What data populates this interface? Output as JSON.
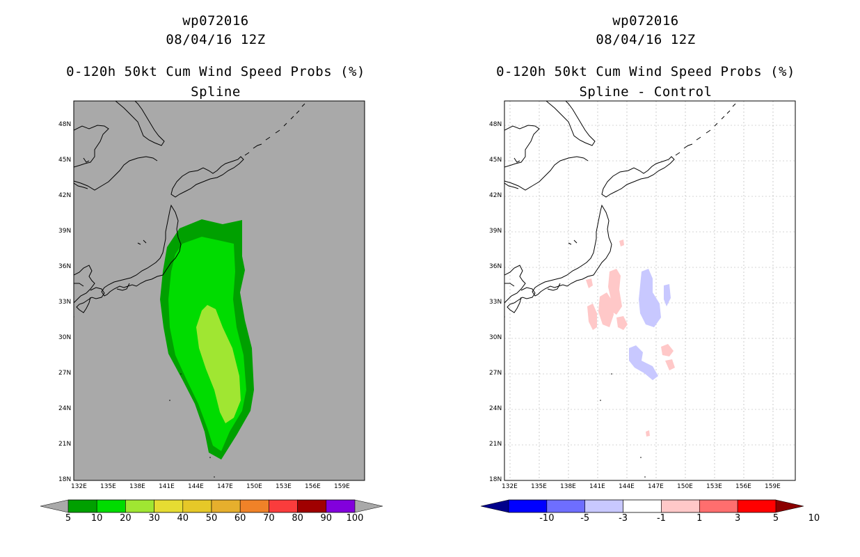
{
  "left_panel": {
    "storm_id": "wp072016",
    "datetime": "08/04/16 12Z",
    "product": "0-120h 50kt Cum Wind Speed Probs (%)",
    "subtitle": "Spline",
    "map_bg": "#a9a9a9"
  },
  "right_panel": {
    "storm_id": "wp072016",
    "datetime": "08/04/16 12Z",
    "product": "0-120h 50kt Cum Wind Speed Probs (%)",
    "subtitle": "Spline - Control",
    "map_bg": "#ffffff"
  },
  "lat_labels": [
    "48N",
    "45N",
    "42N",
    "39N",
    "36N",
    "33N",
    "30N",
    "27N",
    "24N",
    "21N",
    "18N"
  ],
  "lon_labels": [
    "132E",
    "135E",
    "138E",
    "141E",
    "144E",
    "147E",
    "150E",
    "153E",
    "156E",
    "159E"
  ],
  "left_colorbar": {
    "labels": [
      "5",
      "10",
      "20",
      "30",
      "40",
      "50",
      "60",
      "70",
      "80",
      "90",
      "100"
    ],
    "colors": [
      "#00a000",
      "#00dc00",
      "#a0e632",
      "#e6dc32",
      "#e6c828",
      "#e6af2d",
      "#f08228",
      "#fa3c3c",
      "#a00000",
      "#8200dc"
    ],
    "under_color": "#a9a9a9",
    "over_color": "#a9a9a9"
  },
  "right_colorbar": {
    "labels": [
      "-10",
      "-5",
      "-3",
      "-1",
      "1",
      "3",
      "5",
      "10"
    ],
    "colors": [
      "#0000ff",
      "#6e6eff",
      "#c8c8ff",
      "#ffffff",
      "#ffc8c8",
      "#ff6e6e",
      "#ff0000"
    ],
    "under_color": "#00008b",
    "over_color": "#8b0000"
  }
}
